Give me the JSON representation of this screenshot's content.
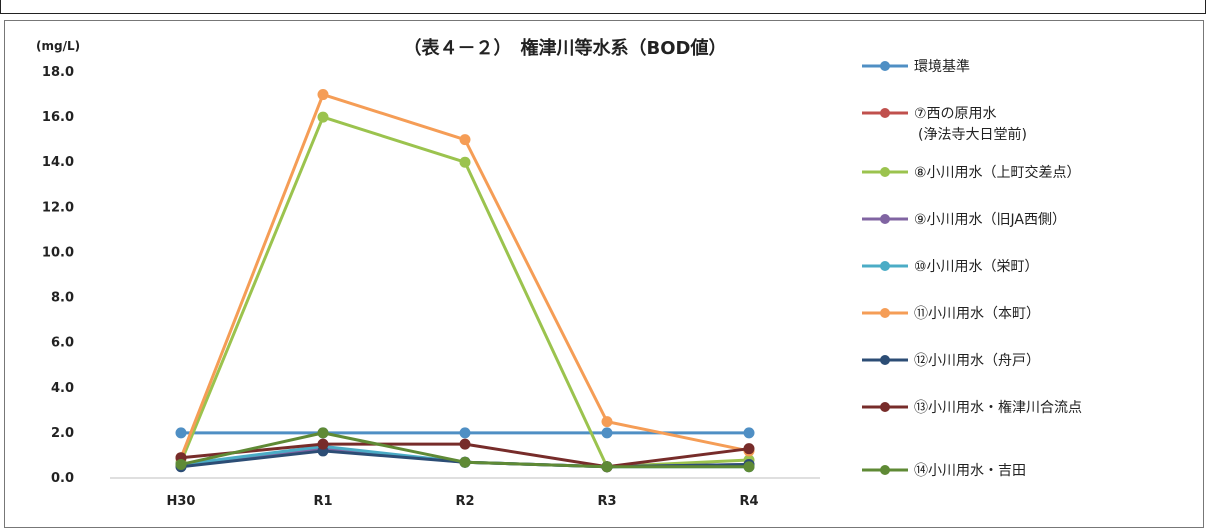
{
  "chart_data": {
    "type": "line",
    "title": "（表４－２）　権津川等水系（BOD値）",
    "ylabel": "(mg/L)",
    "xlabel": "",
    "categories": [
      "H30",
      "R1",
      "R2",
      "R3",
      "R4"
    ],
    "ylim": [
      0,
      18
    ],
    "yticks": [
      "0.0",
      "2.0",
      "4.0",
      "6.0",
      "8.0",
      "10.0",
      "12.0",
      "14.0",
      "16.0",
      "18.0"
    ],
    "grid": false,
    "legend_position": "right",
    "series": [
      {
        "name": "環境基準",
        "color": "#4f8fc4",
        "values": [
          2.0,
          2.0,
          2.0,
          2.0,
          2.0
        ]
      },
      {
        "name": "⑦西の原用水\n(浄法寺大日堂前)",
        "color": "#c0504d",
        "values": [
          null,
          null,
          null,
          null,
          null
        ]
      },
      {
        "name": "⑧小川用水（上町交差点）",
        "color": "#9bc34e",
        "values": [
          0.7,
          16.0,
          14.0,
          0.5,
          0.8
        ]
      },
      {
        "name": "⑨小川用水（旧JA西側）",
        "color": "#8064a2",
        "values": [
          0.6,
          1.3,
          0.7,
          0.5,
          0.6
        ]
      },
      {
        "name": "⑩小川用水（栄町）",
        "color": "#4bacc6",
        "values": [
          0.6,
          1.4,
          0.7,
          0.5,
          0.5
        ]
      },
      {
        "name": "⑪小川用水（本町）",
        "color": "#f59d56",
        "values": [
          0.9,
          17.0,
          15.0,
          2.5,
          1.2
        ]
      },
      {
        "name": "⑫小川用水（舟戸）",
        "color": "#2c4d75",
        "values": [
          0.5,
          1.2,
          0.7,
          0.5,
          0.6
        ]
      },
      {
        "name": "⑬小川用水・権津川合流点",
        "color": "#772c2a",
        "values": [
          0.9,
          1.5,
          1.5,
          0.5,
          1.3
        ]
      },
      {
        "name": "⑭小川用水・吉田",
        "color": "#5f8a35",
        "values": [
          0.6,
          2.0,
          0.7,
          0.5,
          0.5
        ]
      }
    ]
  }
}
